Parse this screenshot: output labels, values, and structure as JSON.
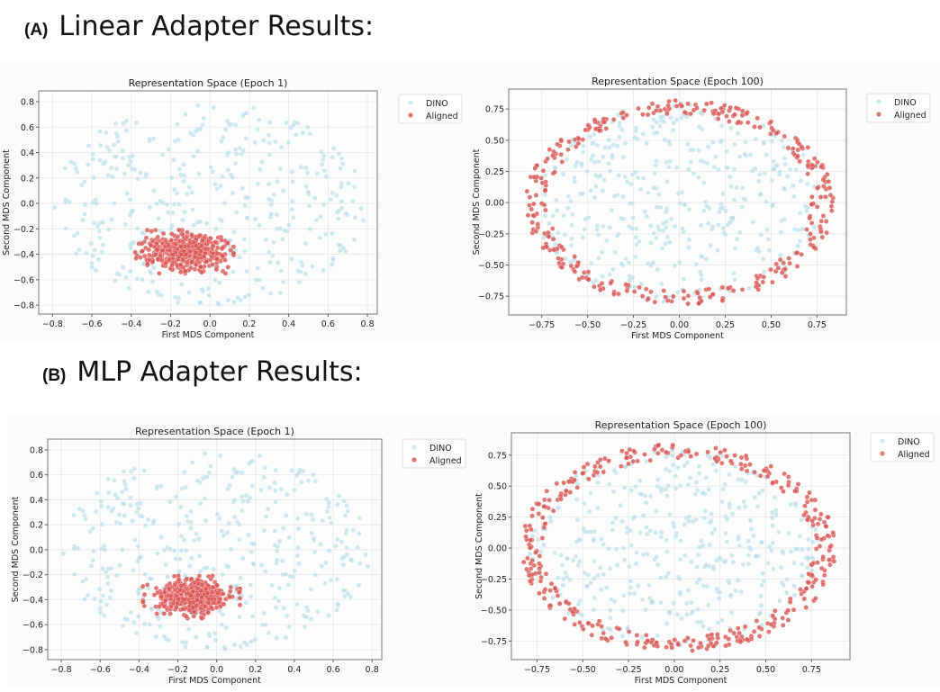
{
  "sections": [
    {
      "tag": "(A)",
      "title": "Linear Adapter Results:"
    },
    {
      "tag": "(B)",
      "title": "MLP Adapter Results:"
    }
  ],
  "colors": {
    "dino": "#add8e6",
    "aligned": "#d9534f"
  },
  "chart_data": [
    {
      "type": "scatter",
      "title": "Representation Space (Epoch 1)",
      "xlabel": "First MDS Component",
      "ylabel": "Second MDS Component",
      "xlim": [
        -0.87,
        0.85
      ],
      "ylim": [
        -0.87,
        0.885
      ],
      "xticks": [
        "-0.8",
        "-0.6",
        "-0.4",
        "-0.2",
        "0.0",
        "0.2",
        "0.4",
        "0.6",
        "0.8"
      ],
      "yticks": [
        "-0.8",
        "-0.6",
        "-0.4",
        "-0.2",
        "0.0",
        "0.2",
        "0.4",
        "0.6",
        "0.8"
      ],
      "grid": true,
      "legend": "outside-top-right",
      "series": [
        {
          "name": "DINO",
          "distribution": "uniform-disk",
          "center": [
            0,
            0
          ],
          "radius": [
            0.79,
            0.8
          ],
          "n": 400,
          "seed": 11
        },
        {
          "name": "Aligned",
          "distribution": "gaussian-cluster",
          "center": [
            -0.12,
            -0.38
          ],
          "std": [
            0.1,
            0.065
          ],
          "n": 500,
          "seed": 12
        }
      ]
    },
    {
      "type": "scatter",
      "title": "Representation Space (Epoch 100)",
      "xlabel": "First MDS Component",
      "ylabel": "Second MDS Component",
      "xlim": [
        -0.93,
        0.91
      ],
      "ylim": [
        -0.9,
        0.91
      ],
      "xticks": [
        "-0.75",
        "-0.50",
        "-0.25",
        "0.00",
        "0.25",
        "0.50",
        "0.75"
      ],
      "yticks": [
        "-0.75",
        "-0.50",
        "-0.25",
        "0.00",
        "0.25",
        "0.50",
        "0.75"
      ],
      "grid": true,
      "legend": "outside-top-right",
      "series": [
        {
          "name": "DINO",
          "distribution": "uniform-disk",
          "center": [
            0,
            0
          ],
          "radius": [
            0.79,
            0.8
          ],
          "n": 400,
          "seed": 21
        },
        {
          "name": "Aligned",
          "distribution": "ring",
          "center": [
            0,
            0
          ],
          "radius": [
            0.78,
            0.76
          ],
          "width": 0.06,
          "n": 330,
          "seed": 22
        }
      ]
    },
    {
      "type": "scatter",
      "title": "Representation Space (Epoch 1)",
      "xlabel": "First MDS Component",
      "ylabel": "Second MDS Component",
      "xlim": [
        -0.87,
        0.85
      ],
      "ylim": [
        -0.88,
        0.886
      ],
      "xticks": [
        "-0.8",
        "-0.6",
        "-0.4",
        "-0.2",
        "0.0",
        "0.2",
        "0.4",
        "0.6",
        "0.8"
      ],
      "yticks": [
        "-0.8",
        "-0.6",
        "-0.4",
        "-0.2",
        "0.0",
        "0.2",
        "0.4",
        "0.6",
        "0.8"
      ],
      "grid": true,
      "legend": "outside-top-right",
      "series": [
        {
          "name": "DINO",
          "distribution": "uniform-disk",
          "center": [
            0,
            0
          ],
          "radius": [
            0.79,
            0.8
          ],
          "n": 400,
          "seed": 11
        },
        {
          "name": "Aligned",
          "distribution": "gaussian-cluster",
          "center": [
            -0.12,
            -0.38
          ],
          "std": [
            0.1,
            0.065
          ],
          "n": 500,
          "seed": 32
        }
      ]
    },
    {
      "type": "scatter",
      "title": "Representation Space (Epoch 100)",
      "xlabel": "First MDS Component",
      "ylabel": "Second MDS Component",
      "xlim": [
        -0.89,
        0.96
      ],
      "ylim": [
        -0.9,
        0.93
      ],
      "xticks": [
        "-0.75",
        "-0.50",
        "-0.25",
        "0.00",
        "0.25",
        "0.50",
        "0.75"
      ],
      "yticks": [
        "-0.75",
        "-0.50",
        "-0.25",
        "0.00",
        "0.25",
        "0.50",
        "0.75"
      ],
      "grid": true,
      "legend": "outside-top-right",
      "series": [
        {
          "name": "DINO",
          "distribution": "uniform-disk",
          "center": [
            0,
            0
          ],
          "radius": [
            0.79,
            0.8
          ],
          "n": 400,
          "seed": 41
        },
        {
          "name": "Aligned",
          "distribution": "ring",
          "center": [
            0.02,
            0
          ],
          "radius": [
            0.8,
            0.78
          ],
          "width": 0.06,
          "n": 360,
          "seed": 42
        }
      ]
    }
  ]
}
